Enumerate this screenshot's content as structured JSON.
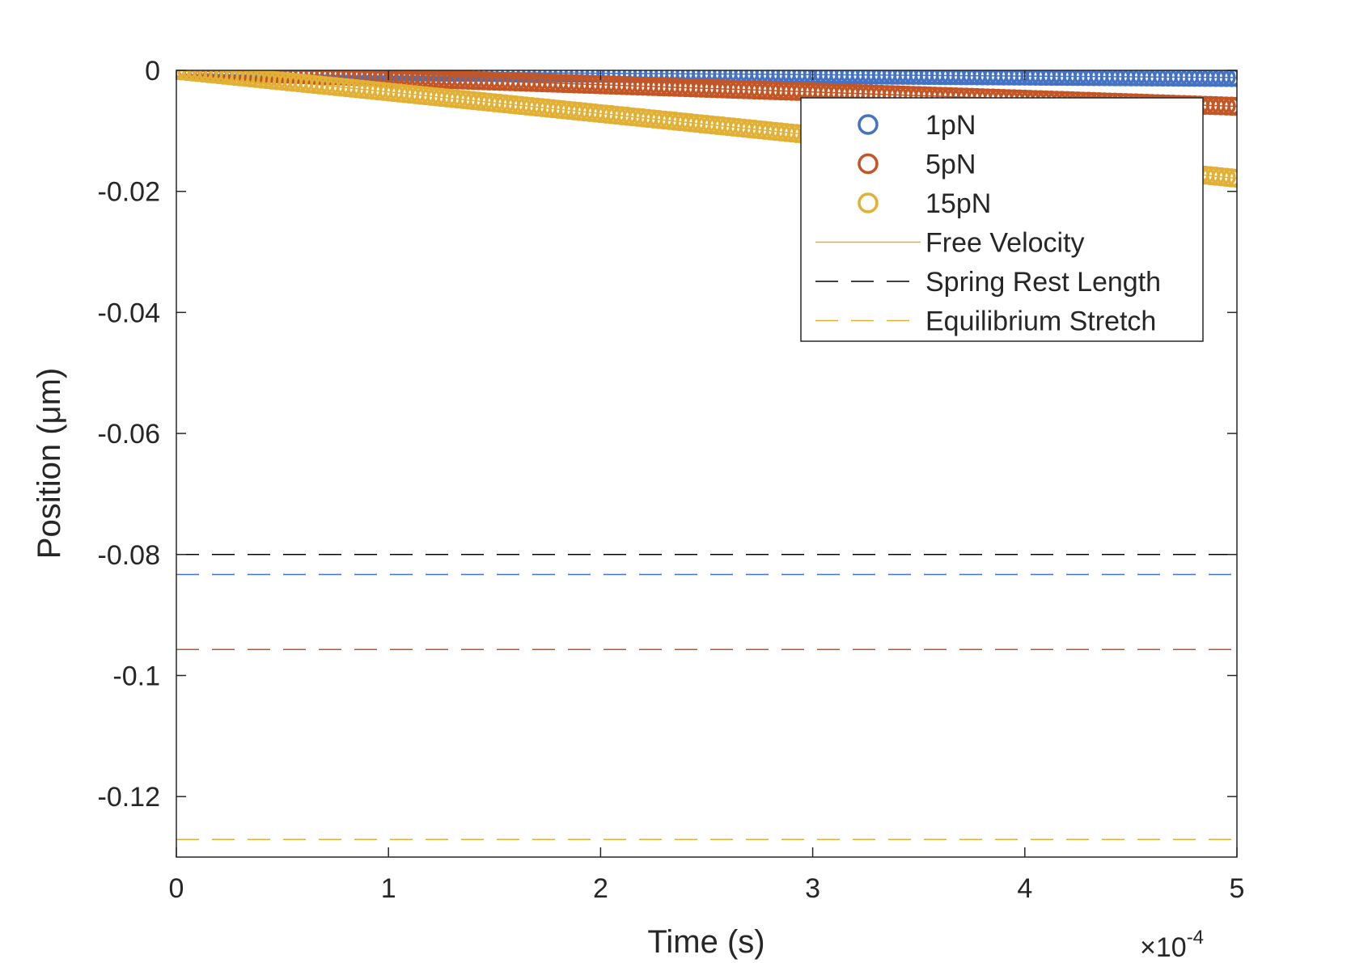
{
  "chart_data": {
    "type": "line",
    "xlabel": "Time (s)",
    "ylabel": "Position (μm)",
    "xlim": [
      0,
      0.0005
    ],
    "ylim": [
      -0.13,
      0
    ],
    "x_ticks": [
      0,
      0.0001,
      0.0002,
      0.0003,
      0.0004,
      0.0005
    ],
    "x_tick_labels": [
      "0",
      "1",
      "2",
      "3",
      "4",
      "5"
    ],
    "x_exponent_label": "×10",
    "x_exponent": "-4",
    "y_ticks": [
      0,
      -0.02,
      -0.04,
      -0.06,
      -0.08,
      -0.1,
      -0.12
    ],
    "y_tick_labels": [
      "0",
      "-0.02",
      "-0.04",
      "-0.06",
      "-0.08",
      "-0.1",
      "-0.12"
    ],
    "grid": false,
    "legend_position": "top-right",
    "series": [
      {
        "name": "1pN",
        "kind": "markers",
        "marker": "circle",
        "color": "#4472C4",
        "x_end": 0.0005,
        "free_velocity": -0.000238,
        "equilibrium": -0.0833
      },
      {
        "name": "5pN",
        "kind": "markers",
        "marker": "circle",
        "color": "#C45525",
        "x_end": 0.0005,
        "free_velocity": -0.00119,
        "equilibrium": -0.0957
      },
      {
        "name": "15pN",
        "kind": "markers",
        "marker": "circle",
        "color": "#E1B034",
        "x_end": 0.0005,
        "free_velocity": -0.00357,
        "equilibrium": -0.1271
      },
      {
        "name": "Free Velocity",
        "kind": "line",
        "style": "solid",
        "color": "#E1B034"
      },
      {
        "name": "Spring Rest Length",
        "kind": "hline",
        "style": "dashed",
        "color": "#000000",
        "y": -0.08
      },
      {
        "name": "Equilibrium Stretch",
        "kind": "hline",
        "style": "dashed",
        "color": "#E1B034"
      }
    ]
  }
}
